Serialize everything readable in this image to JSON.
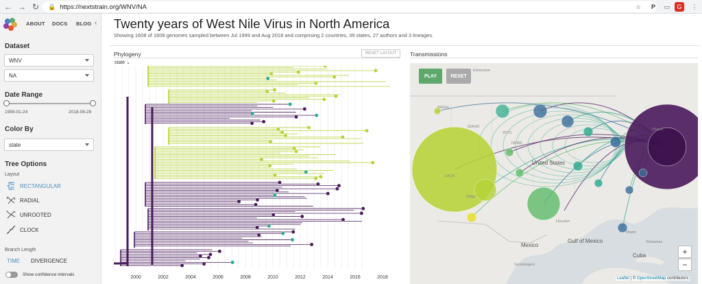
{
  "browser": {
    "url": "https://nextstrain.org/WNV/NA"
  },
  "nav": {
    "about": "ABOUT",
    "docs": "DOCS",
    "blog": "BLOG"
  },
  "sidebar": {
    "dataset_label": "Dataset",
    "dataset_value": "WNV",
    "subset_value": "NA",
    "date_range_label": "Date Range",
    "date_start": "1999-01-24",
    "date_end": "2018-08-28",
    "color_by_label": "Color By",
    "color_by_value": "state",
    "tree_options_label": "Tree Options",
    "layout_label": "Layout",
    "layouts": [
      "RECTANGULAR",
      "RADIAL",
      "UNROOTED",
      "CLOCK"
    ],
    "branch_length_label": "Branch Length",
    "branch_time": "TIME",
    "branch_divergence": "DIVERGENCE",
    "confidence_label": "Show confidence intervals"
  },
  "header": {
    "title": "Twenty years of West Nile Virus in North America",
    "subtitle": "Showing 1608 of 1608 genomes sampled between Jul 1999 and Aug 2018 and comprising 2 countries, 39 states, 27 authors and 3 lineages."
  },
  "phylogeny": {
    "title": "Phylogeny",
    "reset_label": "RESET LAYOUT",
    "color_dropdown": "state",
    "axis_years": [
      "2000",
      "2002",
      "2004",
      "2006",
      "2008",
      "2010",
      "2012",
      "2014",
      "2016",
      "2018"
    ]
  },
  "transmissions": {
    "title": "Transmissions",
    "play_label": "PLAY",
    "reset_label": "RESET",
    "zoom_in": "+",
    "zoom_out": "−",
    "places": [
      "Edmonton",
      "WASH.",
      "United States",
      "Mexico",
      "Gulf of Mexico",
      "Houston",
      "Cuba",
      "Bahamas",
      "Miami",
      "Ottawa",
      "Guadalajara",
      "IDAHO",
      "NEBR.",
      "WYO.",
      "CALIF.",
      "Diego"
    ],
    "attribution_leaflet": "Leaflet",
    "attribution_sep": " | © ",
    "attribution_osm": "OpenStreetMap",
    "attribution_contrib": " contributors"
  },
  "colors": {
    "lime": "#b5d334",
    "purple": "#4a1a5c",
    "teal": "#2ba98d",
    "blue": "#3c6e9a",
    "green": "#5fbb6a"
  }
}
